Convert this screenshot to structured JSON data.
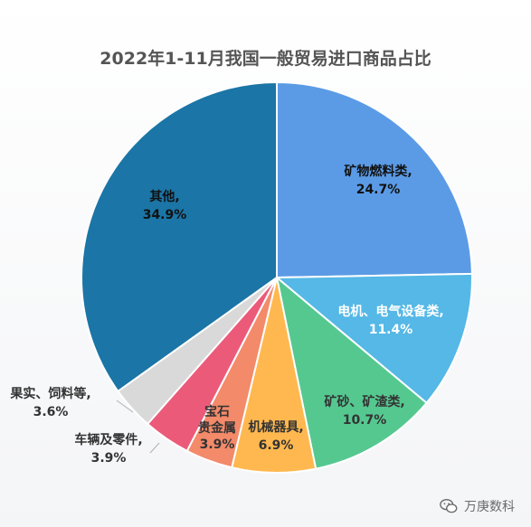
{
  "chart_data": {
    "type": "pie",
    "title": "2022年1-11月我国一般贸易进口商品占比",
    "slices": [
      {
        "name": "矿物燃料类",
        "value": 24.7,
        "label": "24.7%",
        "color": "#5b9be6",
        "label_color": "#111111"
      },
      {
        "name": "电机、电气设备类",
        "value": 11.4,
        "label": "11.4%",
        "color": "#55b8e6",
        "label_color": "#ffffff"
      },
      {
        "name": "矿砂、矿渣类",
        "value": 10.7,
        "label": "10.7%",
        "color": "#55c890",
        "label_color": "#333333"
      },
      {
        "name": "机械器具",
        "value": 6.9,
        "label": "6.9%",
        "color": "#ffb84f",
        "label_color": "#333333"
      },
      {
        "name": "宝石贵金属",
        "value": 3.9,
        "label": "3.9%",
        "color": "#f38a6a",
        "label_color": "#333333"
      },
      {
        "name": "车辆及零件",
        "value": 3.9,
        "label": "3.9%",
        "color": "#ec5a7a",
        "label_color": "#333333"
      },
      {
        "name": "果实、饲料等",
        "value": 3.6,
        "label": "3.6%",
        "color": "#d9d9d9",
        "label_color": "#333333"
      },
      {
        "name": "其他",
        "value": 34.9,
        "label": "34.9%",
        "color": "#1b75a6",
        "label_color": "#111111"
      }
    ],
    "label_lines": {
      "0": [
        "矿物燃料类,",
        "24.7%"
      ],
      "1": [
        "电机、电气设备类,",
        "11.4%"
      ],
      "2": [
        "矿砂、矿渣类,",
        "10.7%"
      ],
      "3": [
        "机械器具,",
        "6.9%"
      ],
      "4": [
        "宝石",
        "贵金属",
        "3.9%"
      ],
      "5": [
        "车辆及零件,",
        "3.9%"
      ],
      "6": [
        "果实、饲料等,",
        "3.6%"
      ],
      "7": [
        "其他,",
        "34.9%"
      ]
    }
  },
  "watermark": {
    "text": "万庚数科",
    "icon": "wechat-icon"
  }
}
